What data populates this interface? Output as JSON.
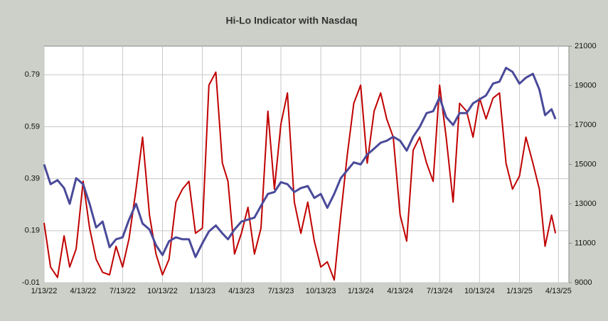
{
  "chart_data": {
    "type": "line",
    "title": "Hi-Lo Indicator with Nasdaq",
    "x": [
      "2022-01-13",
      "2022-01-28",
      "2022-02-13",
      "2022-02-28",
      "2022-03-13",
      "2022-03-28",
      "2022-04-13",
      "2022-04-28",
      "2022-05-13",
      "2022-05-28",
      "2022-06-13",
      "2022-06-28",
      "2022-07-13",
      "2022-07-28",
      "2022-08-13",
      "2022-08-28",
      "2022-09-13",
      "2022-09-28",
      "2022-10-13",
      "2022-10-28",
      "2022-11-13",
      "2022-11-28",
      "2022-12-13",
      "2022-12-28",
      "2023-01-13",
      "2023-01-28",
      "2023-02-13",
      "2023-02-28",
      "2023-03-13",
      "2023-03-28",
      "2023-04-13",
      "2023-04-28",
      "2023-05-13",
      "2023-05-28",
      "2023-06-13",
      "2023-06-28",
      "2023-07-13",
      "2023-07-28",
      "2023-08-13",
      "2023-08-28",
      "2023-09-13",
      "2023-09-28",
      "2023-10-13",
      "2023-10-28",
      "2023-11-13",
      "2023-11-28",
      "2023-12-13",
      "2023-12-28",
      "2024-01-13",
      "2024-01-28",
      "2024-02-13",
      "2024-02-28",
      "2024-03-13",
      "2024-03-28",
      "2024-04-13",
      "2024-04-28",
      "2024-05-13",
      "2024-05-28",
      "2024-06-13",
      "2024-06-28",
      "2024-07-13",
      "2024-07-28",
      "2024-08-13",
      "2024-08-28",
      "2024-09-13",
      "2024-09-28",
      "2024-10-13",
      "2024-10-28",
      "2024-11-13",
      "2024-11-28",
      "2024-12-13",
      "2024-12-28",
      "2025-01-13",
      "2025-01-28",
      "2025-02-13",
      "2025-02-28",
      "2025-03-13",
      "2025-03-28",
      "2025-04-06"
    ],
    "series": [
      {
        "name": "Hi-Lo",
        "color": "#c00000",
        "values": [
          0.22,
          0.05,
          0.01,
          0.17,
          0.05,
          0.12,
          0.38,
          0.2,
          0.08,
          0.03,
          0.02,
          0.13,
          0.05,
          0.16,
          0.35,
          0.55,
          0.25,
          0.1,
          0.02,
          0.08,
          0.3,
          0.35,
          0.38,
          0.18,
          0.2,
          0.75,
          0.8,
          0.45,
          0.38,
          0.1,
          0.18,
          0.28,
          0.1,
          0.2,
          0.65,
          0.35,
          0.6,
          0.72,
          0.3,
          0.18,
          0.3,
          0.15,
          0.05,
          0.07,
          0.0,
          0.25,
          0.48,
          0.68,
          0.75,
          0.45,
          0.65,
          0.72,
          0.62,
          0.55,
          0.25,
          0.15,
          0.5,
          0.55,
          0.45,
          0.38,
          0.75,
          0.55,
          0.3,
          0.68,
          0.65,
          0.55,
          0.7,
          0.62,
          0.7,
          0.72,
          0.45,
          0.35,
          0.4,
          0.55,
          0.45,
          0.35,
          0.13,
          0.25,
          0.18
        ]
      },
      {
        "name": "Nasdaq",
        "color": "#4a4a9a",
        "axis": "y2",
        "values": [
          15000,
          14000,
          14200,
          13800,
          13000,
          14300,
          14000,
          13000,
          11800,
          12100,
          10800,
          11200,
          11300,
          12200,
          13000,
          12000,
          11700,
          10900,
          10400,
          11100,
          11300,
          11200,
          11200,
          10300,
          11000,
          11600,
          11900,
          11500,
          11200,
          11700,
          12100,
          12200,
          12300,
          12900,
          13500,
          13600,
          14100,
          14000,
          13600,
          13800,
          13900,
          13300,
          13500,
          12800,
          13500,
          14300,
          14700,
          15100,
          15000,
          15500,
          15800,
          16100,
          16200,
          16400,
          16200,
          15700,
          16400,
          16900,
          17600,
          17700,
          18400,
          17400,
          17000,
          17600,
          17600,
          18100,
          18300,
          18500,
          19100,
          19200,
          19900,
          19700,
          19100,
          19400,
          19600,
          18800,
          17500,
          17800,
          17300
        ]
      }
    ],
    "xlim": [
      "2022-01-13",
      "2025-05-07"
    ],
    "xticks": [
      {
        "value": "2022-01-13",
        "label": "1/13/22"
      },
      {
        "value": "2022-04-13",
        "label": "4/13/22"
      },
      {
        "value": "2022-07-13",
        "label": "7/13/22"
      },
      {
        "value": "2022-10-13",
        "label": "10/13/22"
      },
      {
        "value": "2023-01-13",
        "label": "1/13/23"
      },
      {
        "value": "2023-04-13",
        "label": "4/13/23"
      },
      {
        "value": "2023-07-13",
        "label": "7/13/23"
      },
      {
        "value": "2023-10-13",
        "label": "10/13/23"
      },
      {
        "value": "2024-01-13",
        "label": "1/13/24"
      },
      {
        "value": "2024-04-13",
        "label": "4/13/24"
      },
      {
        "value": "2024-07-13",
        "label": "7/13/24"
      },
      {
        "value": "2024-10-13",
        "label": "10/13/24"
      },
      {
        "value": "2025-01-13",
        "label": "1/13/25"
      },
      {
        "value": "2025-04-13",
        "label": "4/13/25"
      }
    ],
    "ylim": [
      -0.01,
      0.9
    ],
    "yticks": [
      -0.01,
      0.19,
      0.39,
      0.59,
      0.79
    ],
    "y2lim": [
      9000,
      21000
    ],
    "y2ticks": [
      9000,
      11000,
      13000,
      15000,
      17000,
      19000,
      21000
    ],
    "grid": true
  }
}
